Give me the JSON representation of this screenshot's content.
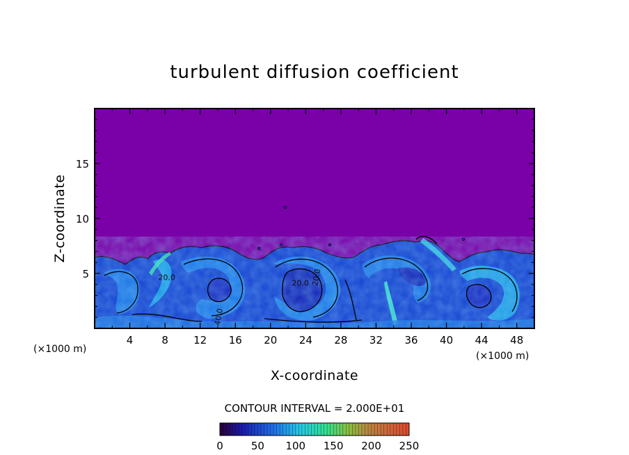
{
  "chart_data": {
    "type": "heatmap",
    "title": "turbulent diffusion coefficient",
    "xlabel": "X-coordinate",
    "ylabel": "Z-coordinate",
    "x_unit": "(×1000 m)",
    "x_unit_right": "(×1000 m)",
    "xlim": [
      0,
      50
    ],
    "ylim": [
      0,
      20
    ],
    "xticks": [
      4,
      8,
      12,
      16,
      20,
      24,
      28,
      32,
      36,
      40,
      44,
      48
    ],
    "yticks": [
      5,
      10,
      15
    ],
    "contour_interval": "CONTOUR INTERVAL = 2.000E+01",
    "colorbar": {
      "min": 0,
      "max": 250,
      "ticks": [
        0,
        50,
        100,
        150,
        200,
        250
      ]
    },
    "contour_labels": [
      {
        "text": "20.0",
        "x": 8.2,
        "y": 4.4
      },
      {
        "text": "40.0",
        "x": 14.4,
        "y": 1.0
      },
      {
        "text": "20.0",
        "x": 23.4,
        "y": 3.9
      },
      {
        "text": "20.0",
        "x": 25.5,
        "y": 4.6
      }
    ],
    "background_value": 0,
    "colors": {
      "background": "#7a00a8",
      "low": "#1420c8",
      "mid": "#1f78e6",
      "high": "#2ed3e0",
      "peak": "#3cf0a0"
    }
  }
}
